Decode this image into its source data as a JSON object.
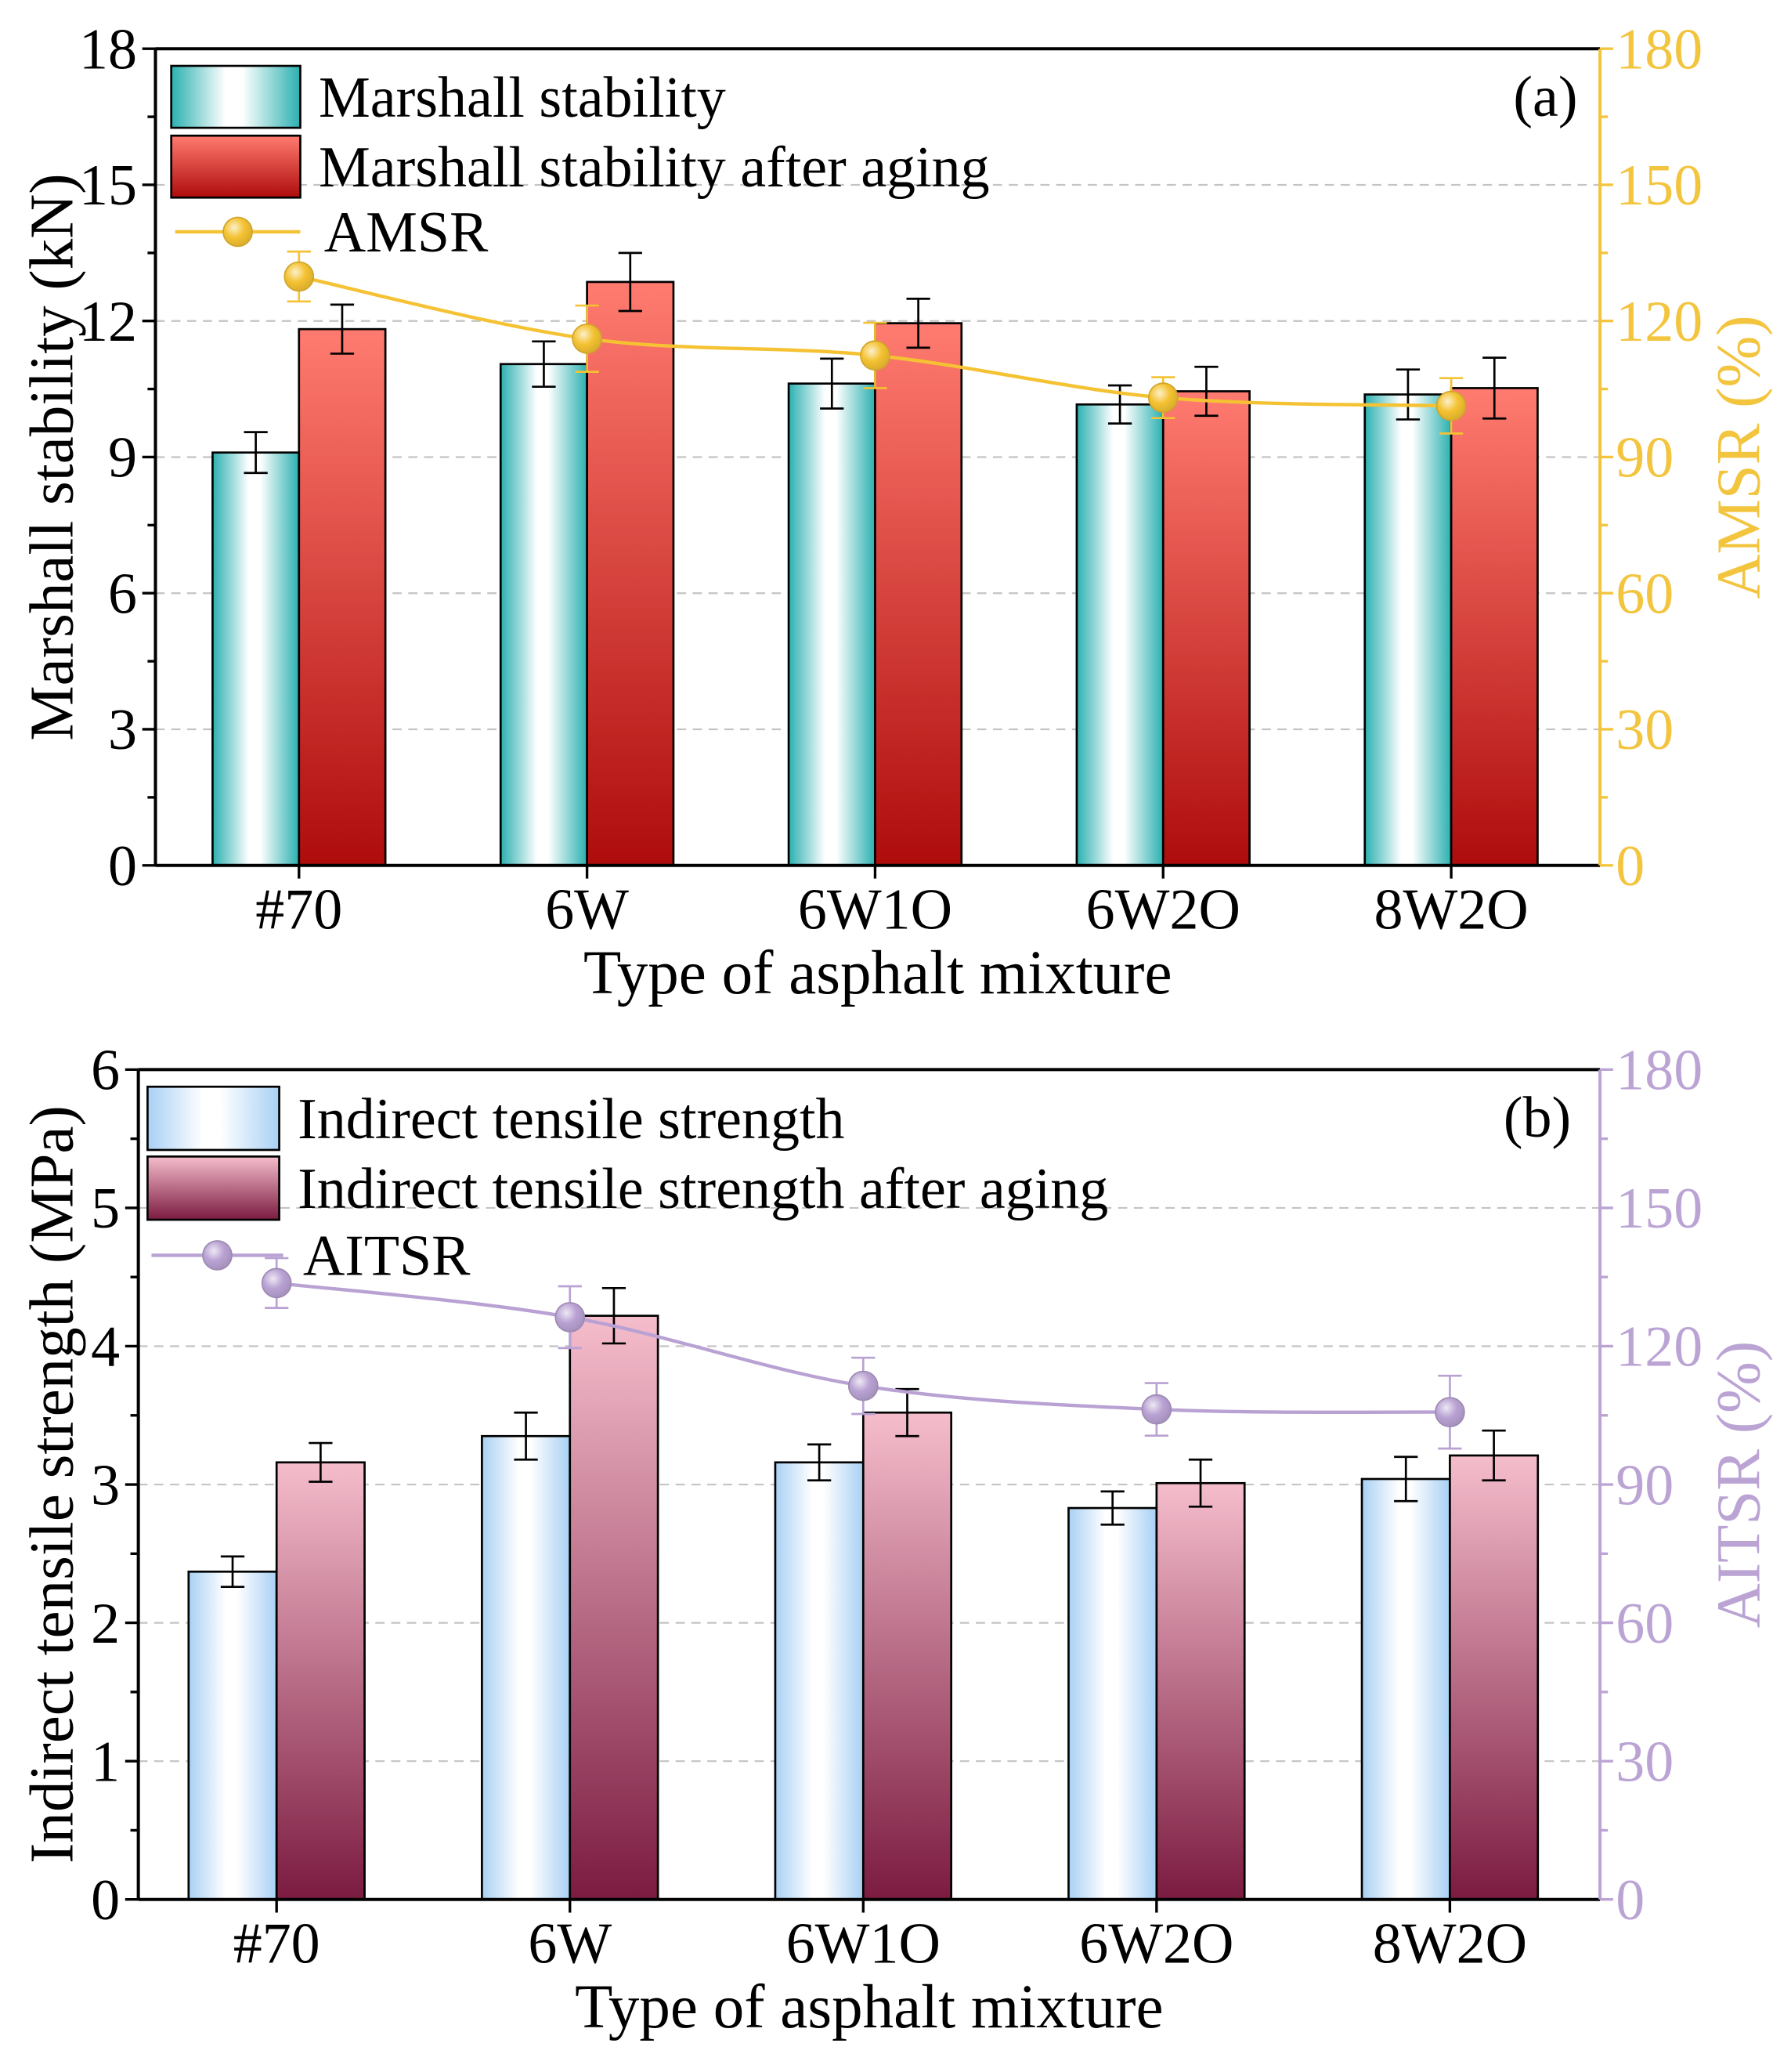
{
  "chart_data": [
    {
      "type": "bar",
      "panel_label": "(a)",
      "categories": [
        "#70",
        "6W",
        "6W1O",
        "6W2O",
        "8W2O"
      ],
      "xlabel": "Type of asphalt mixture",
      "ylabel": "Marshall stability (kN)",
      "ylim": [
        0,
        18
      ],
      "yticks": [
        0,
        3,
        6,
        9,
        12,
        15,
        18
      ],
      "y2label": "AMSR (%)",
      "y2lim": [
        0,
        180
      ],
      "y2ticks": [
        0,
        30,
        60,
        90,
        120,
        150,
        180
      ],
      "y2_color": "#F3C43E",
      "grid": true,
      "legend_position": "top-left",
      "series": [
        {
          "name": "Marshall stability",
          "values": [
            9.1,
            11.05,
            10.62,
            10.16,
            10.38
          ],
          "errors": [
            0.45,
            0.5,
            0.55,
            0.42,
            0.55
          ],
          "edge_color": "#2BB0B0",
          "center_color": "#FFFFFF"
        },
        {
          "name": "Marshall stability after aging",
          "values": [
            11.82,
            12.86,
            11.95,
            10.45,
            10.52
          ],
          "errors": [
            0.54,
            0.64,
            0.54,
            0.54,
            0.67
          ],
          "top_color": "#FF7B70",
          "bottom_color": "#AE0C0C"
        }
      ],
      "line_series": {
        "name": "AMSR",
        "values": [
          129.8,
          116.1,
          112.4,
          103.1,
          101.3
        ],
        "errors": [
          5.5,
          7.3,
          7.2,
          4.5,
          6.1
        ],
        "color": "#F4C232"
      }
    },
    {
      "type": "bar",
      "panel_label": "(b)",
      "categories": [
        "#70",
        "6W",
        "6W1O",
        "6W2O",
        "8W2O"
      ],
      "xlabel": "Type of asphalt mixture",
      "ylabel": "Indirect tensile strength (MPa)",
      "ylim": [
        0,
        6
      ],
      "yticks": [
        0,
        1,
        2,
        3,
        4,
        5,
        6
      ],
      "y2label": "AITSR (%)",
      "y2lim": [
        0,
        180
      ],
      "y2ticks": [
        0,
        30,
        60,
        90,
        120,
        150,
        180
      ],
      "y2_color": "#BBA4D4",
      "grid": true,
      "legend_position": "top-left",
      "series": [
        {
          "name": "Indirect tensile strength",
          "values": [
            2.37,
            3.35,
            3.16,
            2.83,
            3.04
          ],
          "errors": [
            0.11,
            0.17,
            0.13,
            0.12,
            0.16
          ],
          "edge_color": "#A8D0F4",
          "center_color": "#FFFFFF"
        },
        {
          "name": "Indirect tensile strength after aging",
          "values": [
            3.16,
            4.22,
            3.52,
            3.01,
            3.21
          ],
          "errors": [
            0.14,
            0.2,
            0.17,
            0.17,
            0.18
          ],
          "top_color": "#F5BDCC",
          "bottom_color": "#7B1B40"
        }
      ],
      "line_series": {
        "name": "AITSR",
        "values": [
          133.7,
          126.3,
          111.4,
          106.3,
          105.7
        ],
        "errors": [
          5.4,
          6.7,
          6.1,
          5.7,
          7.9
        ],
        "color": "#B9A2D3"
      }
    }
  ]
}
